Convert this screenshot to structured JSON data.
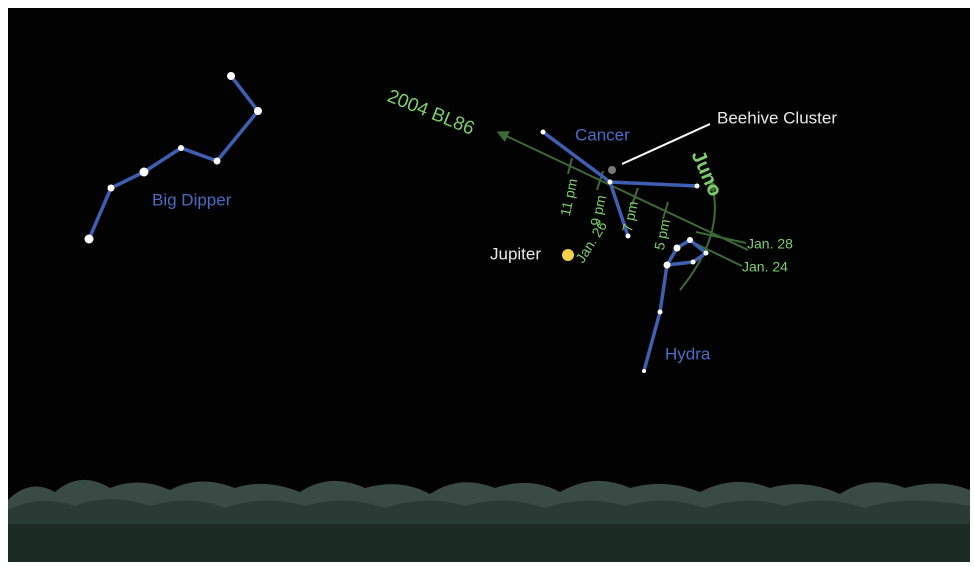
{
  "labels": {
    "big_dipper": "Big Dipper",
    "asteroid": "2004 BL86",
    "cancer": "Cancer",
    "beehive": "Beehive Cluster",
    "juno": "Juno",
    "jupiter": "Jupiter",
    "hydra": "Hydra",
    "time_11": "11 pm",
    "time_9": "9 pm",
    "time_7": "7 pm",
    "time_5": "5 pm",
    "jan_26": "Jan. 26",
    "jan_28": "Jan. 28",
    "jan_24": "Jan. 24"
  }
}
